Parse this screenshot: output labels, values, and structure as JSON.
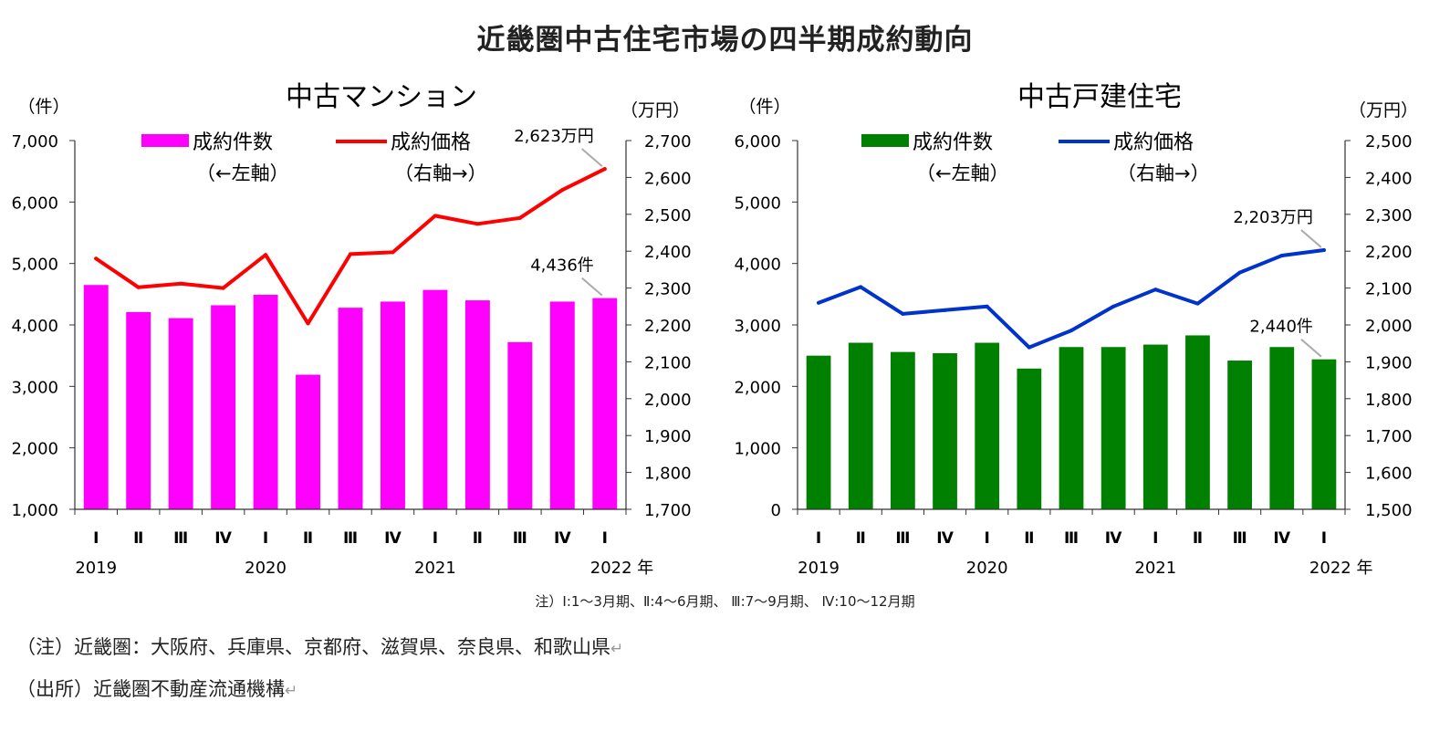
{
  "title": "近畿圏中古住宅市場の四半期成約動向",
  "footnote": "注）Ⅰ:1～3月期、Ⅱ:4～6月期、 Ⅲ:7～9月期、 Ⅳ:10～12月期",
  "notes": {
    "region": "（注）近畿圏：大阪府、兵庫県、京都府、滋賀県、奈良県、和歌山県",
    "source": "（出所）近畿圏不動産流通機構",
    "return_mark": "↵"
  },
  "chart_data": [
    {
      "type": "bar+line",
      "title": "中古マンション",
      "left_unit": "（件）",
      "right_unit": "（万円）",
      "categories": [
        "Ⅰ",
        "Ⅱ",
        "Ⅲ",
        "Ⅳ",
        "Ⅰ",
        "Ⅱ",
        "Ⅲ",
        "Ⅳ",
        "Ⅰ",
        "Ⅱ",
        "Ⅲ",
        "Ⅳ",
        "Ⅰ"
      ],
      "years": [
        {
          "label": "2019",
          "index": 0
        },
        {
          "label": "2020",
          "index": 4
        },
        {
          "label": "2021",
          "index": 8
        },
        {
          "label": "2022 年",
          "index": 12
        }
      ],
      "bar_series": {
        "name": "成約件数",
        "sub": "（←左軸）",
        "color": "#ff00ff",
        "values": [
          4650,
          4210,
          4110,
          4320,
          4490,
          3190,
          4280,
          4380,
          4570,
          4400,
          3720,
          4380,
          4436
        ]
      },
      "line_series": {
        "name": "成約価格",
        "sub": "（右軸→）",
        "color": "#ff0000",
        "values": [
          2380,
          2302,
          2312,
          2300,
          2390,
          2204,
          2392,
          2397,
          2496,
          2474,
          2490,
          2566,
          2623
        ]
      },
      "ylim_left": [
        1000,
        7000
      ],
      "yticks_left": [
        "1,000",
        "2,000",
        "3,000",
        "4,000",
        "5,000",
        "6,000",
        "7,000"
      ],
      "ylim_right": [
        1700,
        2700
      ],
      "yticks_right": [
        "1,700",
        "1,800",
        "1,900",
        "2,000",
        "2,100",
        "2,200",
        "2,300",
        "2,400",
        "2,500",
        "2,600",
        "2,700"
      ],
      "annotations": {
        "line_last": "2,623万円",
        "bar_last": "4,436件"
      }
    },
    {
      "type": "bar+line",
      "title": "中古戸建住宅",
      "left_unit": "（件）",
      "right_unit": "（万円）",
      "categories": [
        "Ⅰ",
        "Ⅱ",
        "Ⅲ",
        "Ⅳ",
        "Ⅰ",
        "Ⅱ",
        "Ⅲ",
        "Ⅳ",
        "Ⅰ",
        "Ⅱ",
        "Ⅲ",
        "Ⅳ",
        "Ⅰ"
      ],
      "years": [
        {
          "label": "2019",
          "index": 0
        },
        {
          "label": "2020",
          "index": 4
        },
        {
          "label": "2021",
          "index": 8
        },
        {
          "label": "2022 年",
          "index": 12
        }
      ],
      "bar_series": {
        "name": "成約件数",
        "sub": "（←左軸）",
        "color": "#008000",
        "values": [
          2500,
          2710,
          2560,
          2540,
          2710,
          2290,
          2640,
          2640,
          2680,
          2830,
          2420,
          2640,
          2440
        ]
      },
      "line_series": {
        "name": "成約価格",
        "sub": "（右軸→）",
        "color": "#0033cc",
        "values": [
          2060,
          2103,
          2030,
          2040,
          2050,
          1939,
          1985,
          2050,
          2096,
          2058,
          2142,
          2188,
          2203
        ]
      },
      "ylim_left": [
        0,
        6000
      ],
      "yticks_left": [
        "0",
        "1,000",
        "2,000",
        "3,000",
        "4,000",
        "5,000",
        "6,000"
      ],
      "ylim_right": [
        1500,
        2500
      ],
      "yticks_right": [
        "1,500",
        "1,600",
        "1,700",
        "1,800",
        "1,900",
        "2,000",
        "2,100",
        "2,200",
        "2,300",
        "2,400",
        "2,500"
      ],
      "annotations": {
        "line_last": "2,203万円",
        "bar_last": "2,440件"
      }
    }
  ]
}
